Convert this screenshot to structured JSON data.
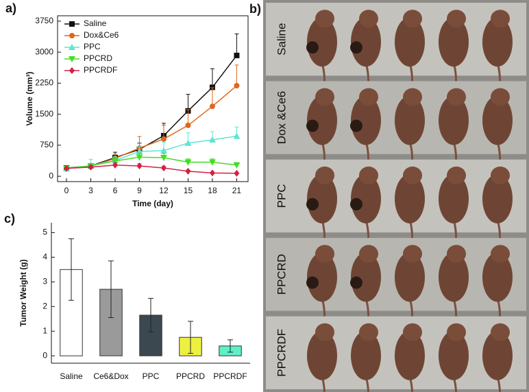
{
  "panels": {
    "a": "a)",
    "b": "b)",
    "c": "c)"
  },
  "chart_data": [
    {
      "type": "line",
      "x_label": "Time (day)",
      "y_label": "Volume (mm³)",
      "x": [
        0,
        3,
        6,
        9,
        12,
        15,
        18,
        21
      ],
      "xlim": [
        -1.1,
        22.4
      ],
      "xticks": [
        0,
        3,
        6,
        9,
        12,
        15,
        18,
        21
      ],
      "ylim": [
        -130,
        3880
      ],
      "yticks": [
        0,
        750,
        1500,
        2250,
        3000,
        3750
      ],
      "legend": "top-left",
      "series": [
        {
          "name": "Saline",
          "color": "#111111",
          "marker": "square",
          "values": [
            200,
            250,
            450,
            650,
            980,
            1580,
            2150,
            2920
          ],
          "errors": [
            30,
            60,
            130,
            150,
            300,
            400,
            450,
            520
          ]
        },
        {
          "name": "Dox&Ce6",
          "color": "#e0661c",
          "marker": "circle",
          "values": [
            200,
            240,
            430,
            680,
            900,
            1230,
            1690,
            2190
          ],
          "errors": [
            30,
            50,
            100,
            280,
            330,
            380,
            450,
            500
          ]
        },
        {
          "name": "PPC",
          "color": "#5ce6d2",
          "marker": "triangle-up",
          "values": [
            180,
            260,
            380,
            600,
            620,
            800,
            880,
            970
          ],
          "errors": [
            30,
            150,
            100,
            120,
            200,
            250,
            200,
            220
          ]
        },
        {
          "name": "PPCRD",
          "color": "#44dd22",
          "marker": "triangle-down",
          "values": [
            190,
            250,
            370,
            460,
            450,
            340,
            340,
            270
          ],
          "errors": [
            30,
            60,
            80,
            100,
            100,
            80,
            80,
            60
          ]
        },
        {
          "name": "PPCRDF",
          "color": "#d42044",
          "marker": "diamond",
          "values": [
            190,
            220,
            270,
            250,
            200,
            120,
            80,
            70
          ],
          "errors": [
            20,
            40,
            50,
            50,
            40,
            30,
            20,
            15
          ]
        }
      ]
    },
    {
      "type": "bar",
      "y_label": "Tumor Weight (g)",
      "categories": [
        "Saline",
        "Ce6&Dox",
        "PPC",
        "PPCRD",
        "PPCRDF"
      ],
      "values": [
        3.5,
        2.7,
        1.65,
        0.75,
        0.4
      ],
      "errors": [
        1.25,
        1.15,
        0.68,
        0.65,
        0.25
      ],
      "colors": [
        "#ffffff",
        "#9a9a9a",
        "#3c4850",
        "#eef040",
        "#5ff0c8"
      ],
      "ylim": [
        -0.3,
        5.4
      ],
      "yticks": [
        0,
        1,
        2,
        3,
        4,
        5
      ]
    }
  ],
  "photo": {
    "rows": [
      "Saline",
      "Dox &Ce6",
      "PPC",
      "PPCRD",
      "PPCRDF"
    ]
  }
}
